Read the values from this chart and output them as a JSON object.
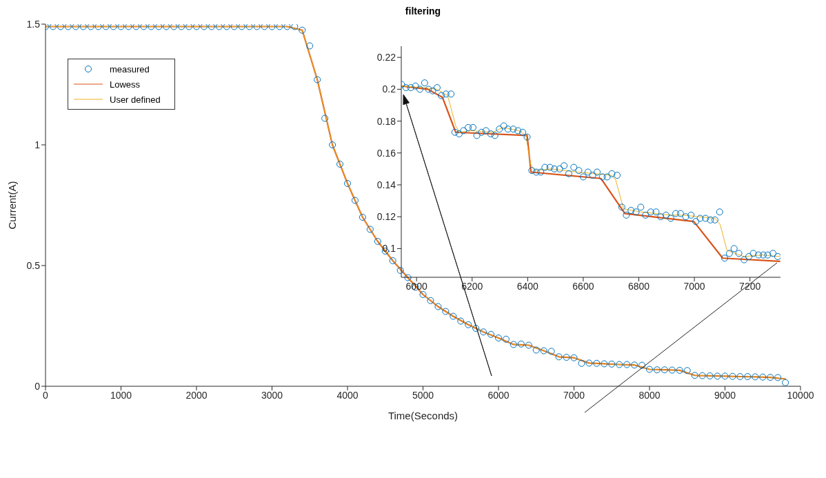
{
  "chart_data": [
    {
      "type": "line",
      "title": "filtering",
      "xlabel": "Time(Seconds)",
      "ylabel": "Current(A)",
      "xlim": [
        0,
        10000
      ],
      "ylim": [
        0,
        1.5
      ],
      "xticks": [
        0,
        1000,
        2000,
        3000,
        4000,
        5000,
        6000,
        7000,
        8000,
        9000,
        10000
      ],
      "yticks": [
        0,
        0.5,
        1,
        1.5
      ],
      "legend": "top left",
      "x": [
        0,
        100,
        200,
        300,
        400,
        500,
        600,
        700,
        800,
        900,
        1000,
        1100,
        1200,
        1300,
        1400,
        1500,
        1600,
        1700,
        1800,
        1900,
        2000,
        2100,
        2200,
        2300,
        2400,
        2500,
        2600,
        2700,
        2800,
        2900,
        3000,
        3100,
        3200,
        3300,
        3400,
        3500,
        3600,
        3700,
        3800,
        3900,
        4000,
        4100,
        4200,
        4300,
        4400,
        4500,
        4600,
        4700,
        4800,
        4900,
        5000,
        5100,
        5200,
        5300,
        5400,
        5500,
        5600,
        5700,
        5800,
        5900,
        6000,
        6100,
        6200,
        6300,
        6400,
        6500,
        6600,
        6700,
        6800,
        6900,
        7000,
        7100,
        7200,
        7300,
        7400,
        7500,
        7600,
        7700,
        7800,
        7900,
        8000,
        8100,
        8200,
        8300,
        8400,
        8500,
        8600,
        8700,
        8800,
        8900,
        9000,
        9100,
        9200,
        9300,
        9400,
        9500,
        9600,
        9700,
        9800
      ],
      "series": [
        {
          "name": "measured",
          "type": "scatter",
          "marker": "circle",
          "color": "#0072bd",
          "values": [
            1.49,
            1.49,
            1.49,
            1.49,
            1.49,
            1.49,
            1.49,
            1.49,
            1.49,
            1.49,
            1.49,
            1.49,
            1.49,
            1.49,
            1.49,
            1.49,
            1.49,
            1.49,
            1.49,
            1.49,
            1.49,
            1.49,
            1.49,
            1.49,
            1.49,
            1.49,
            1.49,
            1.49,
            1.49,
            1.49,
            1.49,
            1.49,
            1.49,
            1.49,
            1.475,
            1.41,
            1.27,
            1.11,
            1.0,
            0.92,
            0.84,
            0.77,
            0.7,
            0.65,
            0.6,
            0.56,
            0.52,
            0.48,
            0.45,
            0.41,
            0.38,
            0.355,
            0.33,
            0.31,
            0.29,
            0.27,
            0.255,
            0.24,
            0.225,
            0.215,
            0.2,
            0.195,
            0.173,
            0.175,
            0.17,
            0.15,
            0.147,
            0.145,
            0.122,
            0.12,
            0.118,
            0.095,
            0.096,
            0.095,
            0.093,
            0.092,
            0.09,
            0.09,
            0.088,
            0.087,
            0.07,
            0.068,
            0.068,
            0.067,
            0.066,
            0.065,
            0.045,
            0.044,
            0.043,
            0.042,
            0.042,
            0.041,
            0.04,
            0.04,
            0.039,
            0.038,
            0.037,
            0.036,
            0.015
          ]
        },
        {
          "name": "Lowess",
          "type": "line",
          "color": "#d95319",
          "x": [
            0,
            200,
            400,
            600,
            800,
            1000,
            1200,
            1400,
            1600,
            1800,
            2000,
            2200,
            2400,
            2600,
            2800,
            3000,
            3200,
            3400,
            3600,
            3800,
            4000,
            4200,
            4400,
            4600,
            4800,
            5000,
            5200,
            5400,
            5600,
            5800,
            6000,
            6200,
            6400,
            6600,
            6800,
            7000,
            7200,
            7400,
            7600,
            7800,
            8000,
            8200,
            8400,
            8600,
            8800,
            9000,
            9200,
            9400,
            9600,
            9800
          ],
          "values": [
            1.49,
            1.49,
            1.49,
            1.49,
            1.49,
            1.49,
            1.49,
            1.49,
            1.49,
            1.49,
            1.49,
            1.49,
            1.49,
            1.49,
            1.49,
            1.49,
            1.49,
            1.475,
            1.27,
            1.0,
            0.84,
            0.7,
            0.6,
            0.52,
            0.45,
            0.38,
            0.33,
            0.29,
            0.255,
            0.225,
            0.2,
            0.173,
            0.17,
            0.147,
            0.122,
            0.118,
            0.096,
            0.093,
            0.09,
            0.088,
            0.07,
            0.068,
            0.066,
            0.045,
            0.043,
            0.042,
            0.04,
            0.039,
            0.037,
            0.03
          ]
        },
        {
          "name": "User defined",
          "type": "line",
          "color": "#edb120",
          "x": [
            0,
            200,
            400,
            600,
            800,
            1000,
            1200,
            1400,
            1600,
            1800,
            2000,
            2200,
            2400,
            2600,
            2800,
            3000,
            3200,
            3400,
            3600,
            3800,
            4000,
            4200,
            4400,
            4600,
            4800,
            5000,
            5200,
            5400,
            5600,
            5800,
            6000,
            6200,
            6400,
            6600,
            6800,
            7000,
            7200,
            7400,
            7600,
            7800,
            8000,
            8200,
            8400,
            8600,
            8800,
            9000,
            9200,
            9400,
            9600,
            9800
          ],
          "values": [
            1.49,
            1.49,
            1.49,
            1.49,
            1.49,
            1.49,
            1.49,
            1.49,
            1.49,
            1.49,
            1.49,
            1.49,
            1.49,
            1.49,
            1.49,
            1.49,
            1.49,
            1.475,
            1.27,
            1.0,
            0.84,
            0.7,
            0.6,
            0.52,
            0.45,
            0.38,
            0.33,
            0.29,
            0.255,
            0.225,
            0.2,
            0.173,
            0.17,
            0.147,
            0.122,
            0.118,
            0.096,
            0.093,
            0.09,
            0.088,
            0.07,
            0.068,
            0.066,
            0.045,
            0.043,
            0.042,
            0.04,
            0.039,
            0.037,
            0.03
          ]
        }
      ]
    },
    {
      "type": "line",
      "xlim": [
        5945,
        7310
      ],
      "ylim": [
        0.082,
        0.227
      ],
      "xticks": [
        6000,
        6200,
        6400,
        6600,
        6800,
        7000,
        7200
      ],
      "yticks": [
        0.1,
        0.12,
        0.14,
        0.16,
        0.18,
        0.2,
        0.22
      ],
      "series": [
        {
          "type": "scatter",
          "marker": "circle",
          "color": "#0072bd",
          "x": [
            5946,
            5962,
            5979,
            5996,
            6012,
            6029,
            6043,
            6058,
            6074,
            6089,
            6106,
            6124,
            6138,
            6153,
            6169,
            6186,
            6203,
            6217,
            6234,
            6250,
            6267,
            6282,
            6298,
            6314,
            6329,
            6348,
            6365,
            6382,
            6398,
            6415,
            6431,
            6447,
            6462,
            6480,
            6496,
            6515,
            6531,
            6548,
            6566,
            6584,
            6600,
            6617,
            6634,
            6650,
            6669,
            6686,
            6703,
            6722,
            6739,
            6755,
            6772,
            6790,
            6807,
            6824,
            6843,
            6862,
            6879,
            6898,
            6915,
            6933,
            6950,
            6969,
            6988,
            7005,
            7021,
            7040,
            7058,
            7074,
            7091,
            7109,
            7126,
            7143,
            7160,
            7179,
            7196,
            7212,
            7231,
            7248,
            7264,
            7283,
            7300
          ],
          "values": [
            0.203,
            0.201,
            0.201,
            0.202,
            0.2,
            0.204,
            0.2,
            0.199,
            0.201,
            0.196,
            0.197,
            0.197,
            0.173,
            0.172,
            0.174,
            0.176,
            0.176,
            0.171,
            0.173,
            0.174,
            0.172,
            0.171,
            0.175,
            0.177,
            0.175,
            0.175,
            0.174,
            0.173,
            0.17,
            0.149,
            0.148,
            0.148,
            0.151,
            0.151,
            0.15,
            0.15,
            0.152,
            0.147,
            0.151,
            0.149,
            0.145,
            0.148,
            0.146,
            0.148,
            0.145,
            0.145,
            0.147,
            0.146,
            0.126,
            0.121,
            0.124,
            0.123,
            0.126,
            0.121,
            0.123,
            0.123,
            0.12,
            0.121,
            0.119,
            0.122,
            0.122,
            0.12,
            0.121,
            0.117,
            0.119,
            0.119,
            0.118,
            0.118,
            0.123,
            0.094,
            0.097,
            0.1,
            0.097,
            0.093,
            0.095,
            0.097,
            0.096,
            0.096,
            0.096,
            0.097,
            0.095
          ]
        },
        {
          "type": "line",
          "color": "#d95319",
          "x": [
            5946,
            6040,
            6093,
            6141,
            6398,
            6412,
            6664,
            6750,
            6998,
            7102,
            7307
          ],
          "values": [
            0.202,
            0.2,
            0.195,
            0.173,
            0.171,
            0.148,
            0.144,
            0.122,
            0.117,
            0.094,
            0.092
          ]
        },
        {
          "type": "line",
          "color": "#edb120",
          "x": [
            5946,
            6027,
            6074,
            6112,
            6141,
            6155,
            6198,
            6274,
            6312,
            6369,
            6393,
            6412,
            6426,
            6484,
            6579,
            6703,
            6717,
            6745,
            6807,
            6912,
            6960,
            7074,
            7093,
            7117,
            7179,
            7245,
            7307
          ],
          "values": [
            0.202,
            0.201,
            0.2,
            0.196,
            0.177,
            0.173,
            0.174,
            0.173,
            0.176,
            0.174,
            0.171,
            0.152,
            0.149,
            0.15,
            0.148,
            0.146,
            0.143,
            0.125,
            0.123,
            0.121,
            0.121,
            0.119,
            0.115,
            0.099,
            0.095,
            0.096,
            0.095
          ]
        }
      ]
    }
  ]
}
